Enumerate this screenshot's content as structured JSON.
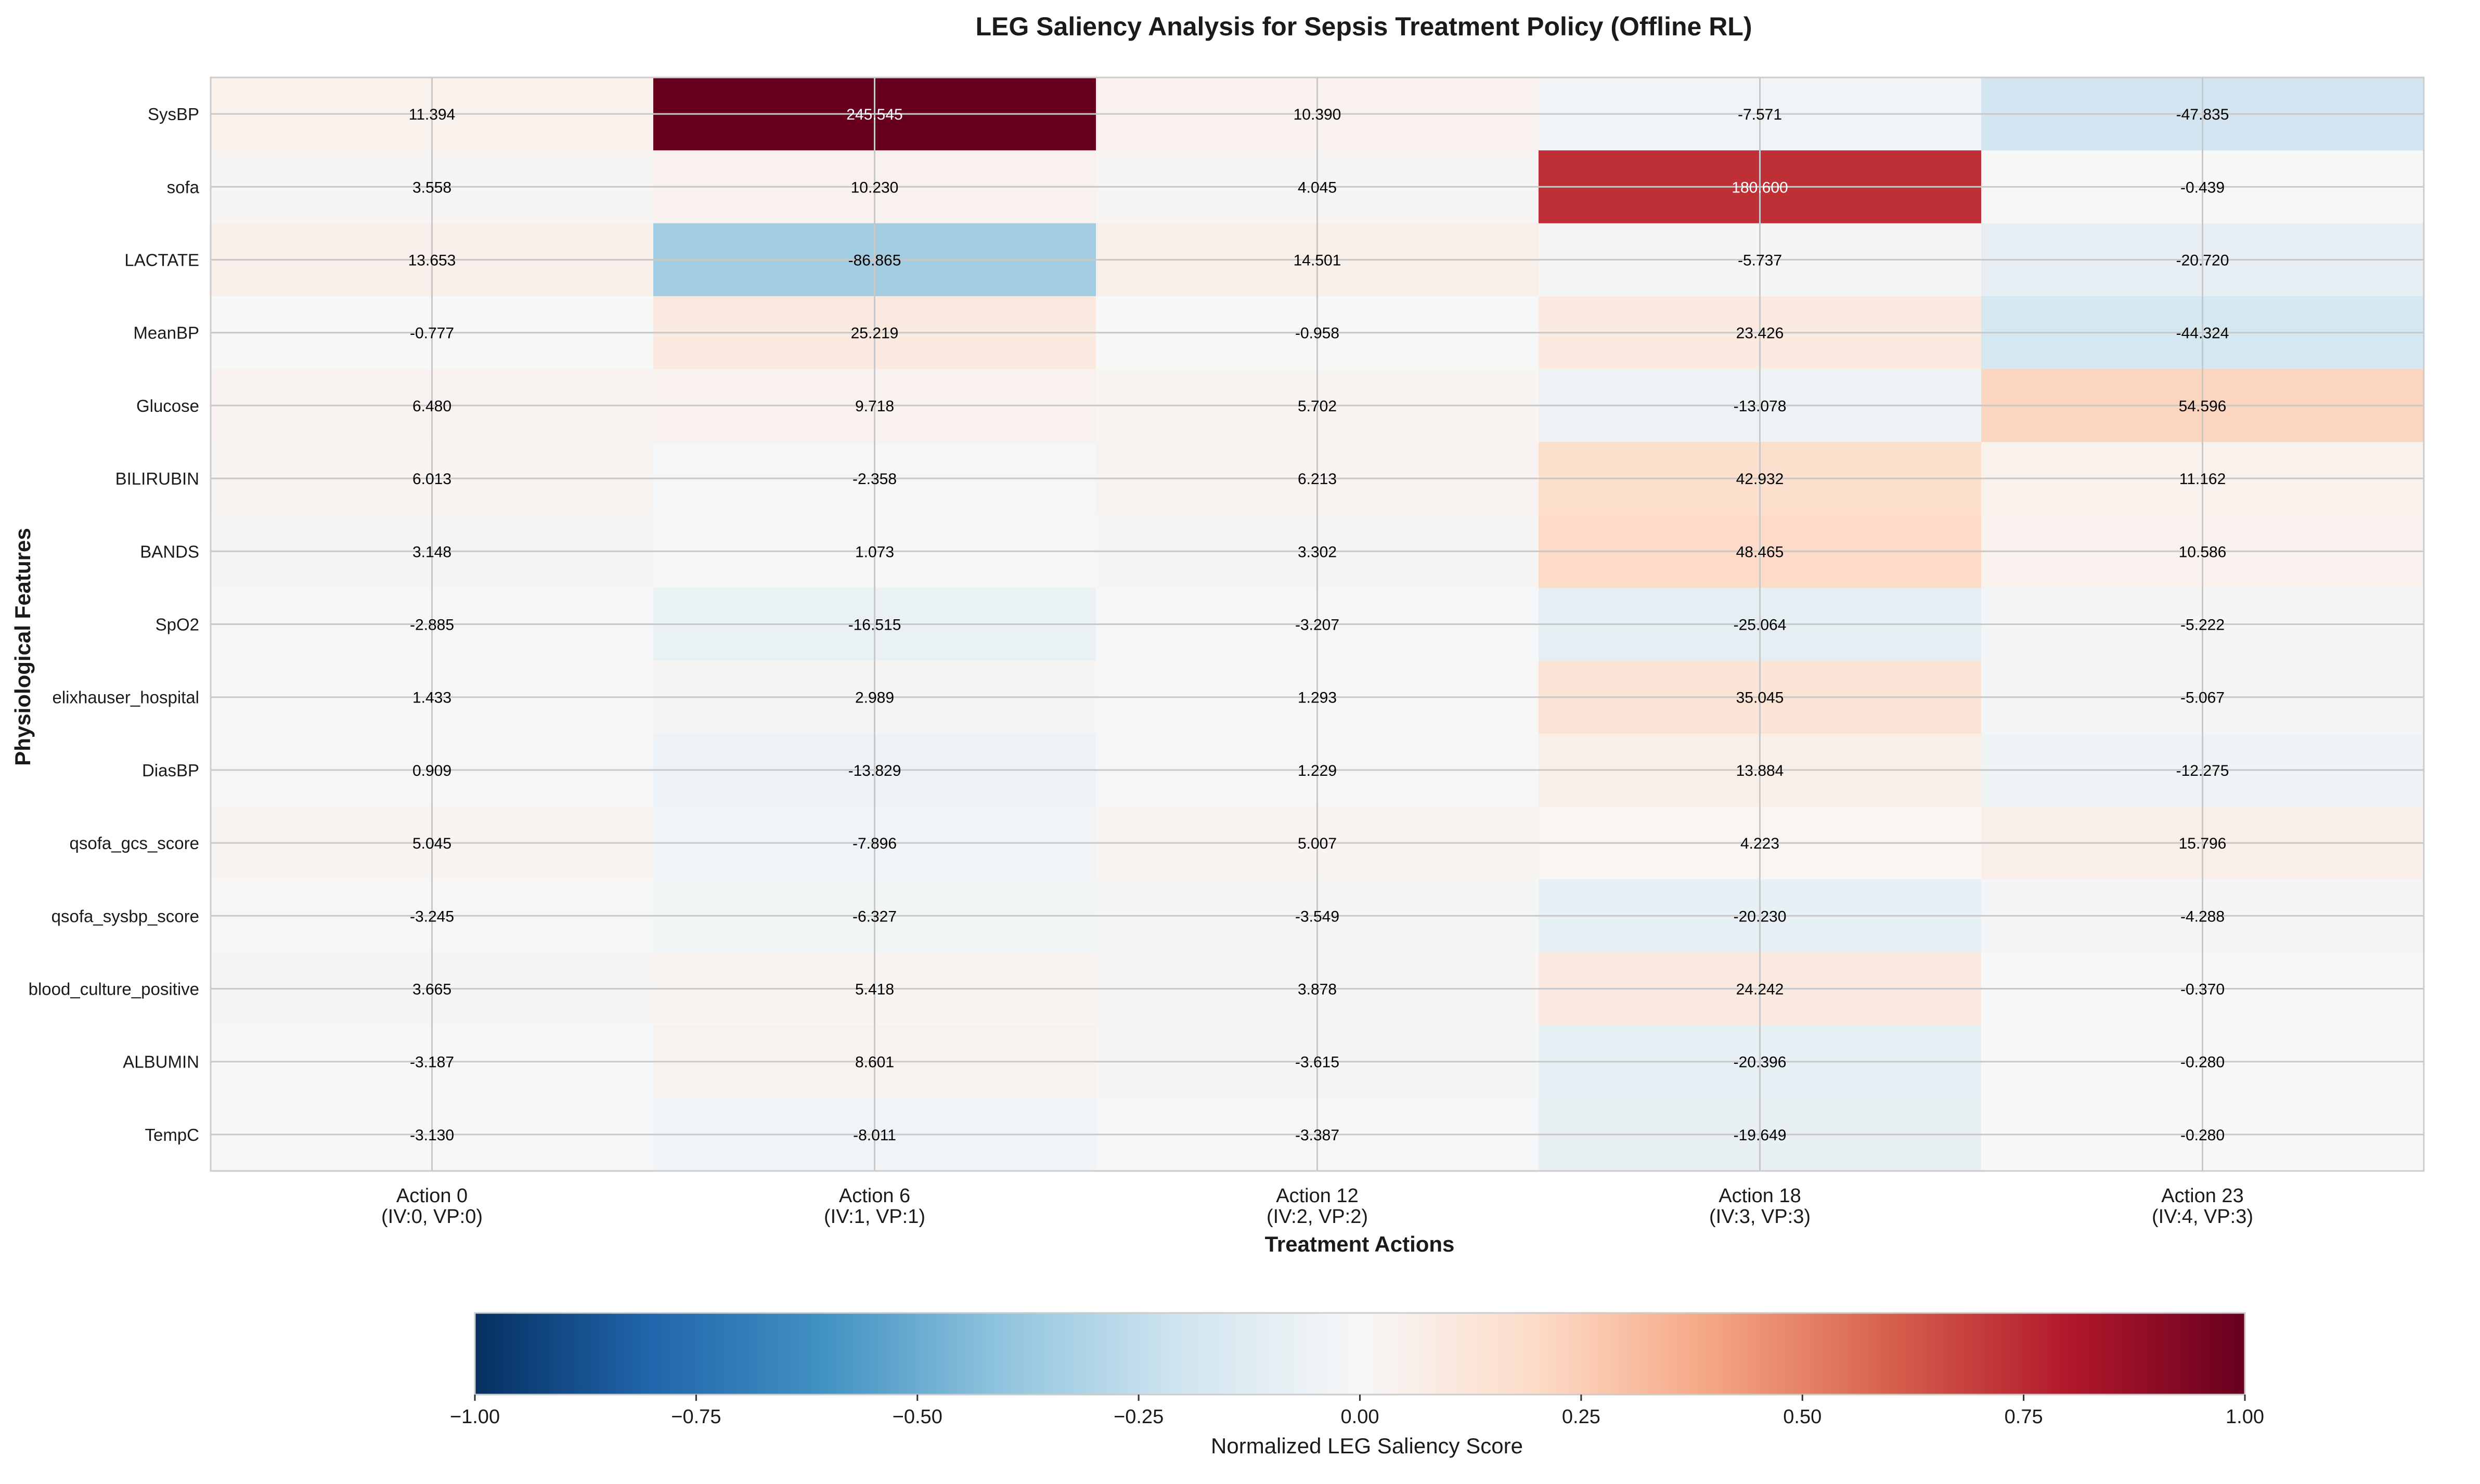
{
  "chart_data": {
    "type": "heatmap",
    "title": "LEG Saliency Analysis for Sepsis Treatment Policy (Offline RL)",
    "xlabel": "Treatment Actions",
    "ylabel": "Physiological Features",
    "x_categories": [
      [
        "Action 0",
        "(IV:0, VP:0)"
      ],
      [
        "Action 6",
        "(IV:1, VP:1)"
      ],
      [
        "Action 12",
        "(IV:2, VP:2)"
      ],
      [
        "Action 18",
        "(IV:3, VP:3)"
      ],
      [
        "Action 23",
        "(IV:4, VP:3)"
      ]
    ],
    "y_categories": [
      "SysBP",
      "sofa",
      "LACTATE",
      "MeanBP",
      "Glucose",
      "BILIRUBIN",
      "BANDS",
      "SpO2",
      "elixhauser_hospital",
      "DiasBP",
      "qsofa_gcs_score",
      "qsofa_sysbp_score",
      "blood_culture_positive",
      "ALBUMIN",
      "TempC"
    ],
    "values": [
      [
        11.394,
        245.545,
        10.39,
        -7.571,
        -47.835
      ],
      [
        3.558,
        10.23,
        4.045,
        180.6,
        -0.439
      ],
      [
        13.653,
        -86.865,
        14.501,
        -5.737,
        -20.72
      ],
      [
        -0.777,
        25.219,
        -0.958,
        23.426,
        -44.324
      ],
      [
        6.48,
        9.718,
        5.702,
        -13.078,
        54.596
      ],
      [
        6.013,
        -2.358,
        6.213,
        42.932,
        11.162
      ],
      [
        3.148,
        1.073,
        3.302,
        48.465,
        10.586
      ],
      [
        -2.885,
        -16.515,
        -3.207,
        -25.064,
        -5.222
      ],
      [
        1.433,
        2.989,
        1.293,
        35.045,
        -5.067
      ],
      [
        0.909,
        -13.829,
        1.229,
        13.884,
        -12.275
      ],
      [
        5.045,
        -7.896,
        5.007,
        4.223,
        15.796
      ],
      [
        -3.245,
        -6.327,
        -3.549,
        -20.23,
        -4.288
      ],
      [
        3.665,
        5.418,
        3.878,
        24.242,
        -0.37
      ],
      [
        -3.187,
        8.601,
        -3.615,
        -20.396,
        -0.28
      ],
      [
        -3.13,
        -8.011,
        -3.387,
        -19.649,
        -0.28
      ]
    ],
    "normalization_max": 245.545,
    "colormap": "RdBu_r",
    "colorbar": {
      "label": "Normalized LEG Saliency Score",
      "range": [
        -1.0,
        1.0
      ],
      "ticks": [
        -1.0,
        -0.75,
        -0.5,
        -0.25,
        0.0,
        0.25,
        0.5,
        0.75,
        1.0
      ],
      "tick_labels": [
        "−1.00",
        "−0.75",
        "−0.50",
        "−0.25",
        "0.00",
        "0.25",
        "0.50",
        "0.75",
        "1.00"
      ],
      "orientation": "horizontal",
      "placement": "bottom"
    },
    "grid": true,
    "value_format": "3 decimals"
  }
}
